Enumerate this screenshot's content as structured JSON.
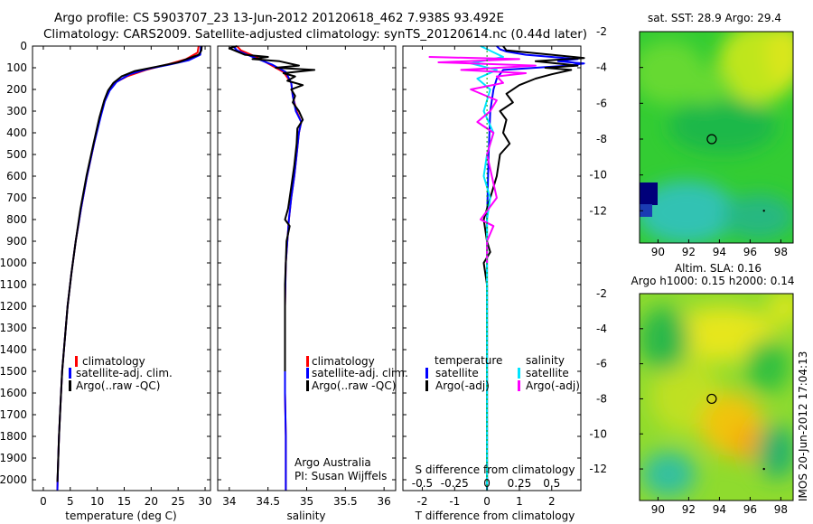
{
  "header": {
    "line1": "Argo profile: CS 5903707_23 13-Jun-2012 20120618_462 7.938S 93.492E",
    "line2": "Climatology: CARS2009. Satellite-adjusted climatology: synTS_20120614.nc (0.44d later)"
  },
  "depth_ticks": [
    0,
    100,
    200,
    300,
    400,
    500,
    600,
    700,
    800,
    900,
    1000,
    1100,
    1200,
    1300,
    1400,
    1500,
    1600,
    1700,
    1800,
    1900,
    2000
  ],
  "colors": {
    "climatology": "#ff0000",
    "satellite": "#0000ff",
    "argo": "#000000",
    "sat_diff_s": "#00e5ff",
    "argo_diff_s": "#ff00ff"
  },
  "chart_data": [
    {
      "type": "line",
      "xlabel": "temperature (deg C)",
      "xlim": [
        -2,
        31
      ],
      "xticks": [
        0,
        5,
        10,
        15,
        20,
        25,
        30
      ],
      "ylim": [
        2050,
        0
      ],
      "legend": [
        "climatology",
        "satellite-adj. clim.",
        "Argo(..raw -QC)"
      ],
      "series": [
        {
          "name": "climatology",
          "color": "#ff0000",
          "points": [
            [
              28.8,
              0
            ],
            [
              28.6,
              30
            ],
            [
              26.5,
              60
            ],
            [
              23,
              85
            ],
            [
              19,
              110
            ],
            [
              15.5,
              140
            ],
            [
              13.2,
              170
            ],
            [
              12,
              210
            ],
            [
              11.3,
              260
            ],
            [
              10.5,
              330
            ],
            [
              9.4,
              450
            ],
            [
              8.1,
              600
            ],
            [
              7,
              750
            ],
            [
              6,
              900
            ],
            [
              5.2,
              1050
            ],
            [
              4.5,
              1200
            ],
            [
              4,
              1350
            ],
            [
              3.5,
              1500
            ],
            [
              3.2,
              1650
            ],
            [
              2.9,
              1800
            ],
            [
              2.7,
              1950
            ],
            [
              2.6,
              2050
            ]
          ]
        },
        {
          "name": "satellite-adj. clim.",
          "color": "#0000ff",
          "points": [
            [
              29.2,
              0
            ],
            [
              29.1,
              40
            ],
            [
              27,
              65
            ],
            [
              23.5,
              85
            ],
            [
              19.5,
              105
            ],
            [
              16,
              130
            ],
            [
              13.6,
              165
            ],
            [
              12.3,
              205
            ],
            [
              11.4,
              255
            ],
            [
              10.6,
              330
            ],
            [
              9.4,
              450
            ],
            [
              8.1,
              600
            ],
            [
              7,
              750
            ],
            [
              6,
              900
            ],
            [
              5.2,
              1050
            ],
            [
              4.5,
              1200
            ],
            [
              4,
              1350
            ],
            [
              3.5,
              1500
            ],
            [
              3.2,
              1650
            ],
            [
              2.9,
              1800
            ],
            [
              2.7,
              1950
            ],
            [
              2.6,
              2050
            ]
          ]
        },
        {
          "name": "Argo(..raw -QC)",
          "color": "#000000",
          "points": [
            [
              29.4,
              0
            ],
            [
              29.3,
              20
            ],
            [
              28.8,
              40
            ],
            [
              25,
              75
            ],
            [
              21,
              95
            ],
            [
              17,
              115
            ],
            [
              14.5,
              140
            ],
            [
              13,
              170
            ],
            [
              12,
              205
            ],
            [
              11.3,
              250
            ],
            [
              10.4,
              330
            ],
            [
              9.3,
              450
            ],
            [
              8,
              600
            ],
            [
              6.9,
              750
            ],
            [
              6,
              900
            ],
            [
              5.2,
              1050
            ],
            [
              4.5,
              1200
            ],
            [
              4,
              1350
            ],
            [
              3.5,
              1500
            ],
            [
              3.2,
              1650
            ],
            [
              2.9,
              1800
            ],
            [
              2.7,
              1950
            ],
            [
              2.6,
              2010
            ]
          ]
        }
      ]
    },
    {
      "type": "line",
      "xlabel": "salinity",
      "xlim": [
        33.85,
        36.15
      ],
      "xticks": [
        34,
        34.5,
        35,
        35.5,
        36
      ],
      "ylim": [
        2050,
        0
      ],
      "legend": [
        "climatology",
        "satellite-adj. clim.",
        "Argo(..raw -QC)"
      ],
      "annotation": [
        "Argo Australia",
        "PI: Susan Wijffels"
      ],
      "series": [
        {
          "name": "climatology",
          "color": "#ff0000",
          "points": [
            [
              34.1,
              0
            ],
            [
              34.15,
              20
            ],
            [
              34.35,
              50
            ],
            [
              34.5,
              80
            ],
            [
              34.7,
              120
            ],
            [
              34.8,
              170
            ],
            [
              34.82,
              230
            ],
            [
              34.87,
              300
            ],
            [
              34.93,
              350
            ],
            [
              34.9,
              400
            ],
            [
              34.87,
              500
            ],
            [
              34.84,
              600
            ],
            [
              34.8,
              700
            ],
            [
              34.77,
              800
            ],
            [
              34.75,
              900
            ],
            [
              34.73,
              1000
            ],
            [
              34.72,
              1200
            ],
            [
              34.72,
              1400
            ],
            [
              34.72,
              1600
            ],
            [
              34.73,
              1800
            ],
            [
              34.73,
              2050
            ]
          ]
        },
        {
          "name": "satellite-adj. clim.",
          "color": "#0000ff",
          "points": [
            [
              34.05,
              0
            ],
            [
              34.1,
              20
            ],
            [
              34.3,
              50
            ],
            [
              34.55,
              85
            ],
            [
              34.73,
              120
            ],
            [
              34.8,
              170
            ],
            [
              34.82,
              230
            ],
            [
              34.86,
              300
            ],
            [
              34.93,
              350
            ],
            [
              34.9,
              400
            ],
            [
              34.87,
              500
            ],
            [
              34.84,
              600
            ],
            [
              34.8,
              700
            ],
            [
              34.77,
              800
            ],
            [
              34.75,
              900
            ],
            [
              34.73,
              1000
            ],
            [
              34.72,
              1200
            ],
            [
              34.72,
              1400
            ],
            [
              34.72,
              1600
            ],
            [
              34.73,
              1800
            ],
            [
              34.73,
              2050
            ]
          ]
        },
        {
          "name": "Argo(..raw -QC)",
          "color": "#000000",
          "points": [
            [
              34.1,
              0
            ],
            [
              34.0,
              10
            ],
            [
              34.2,
              40
            ],
            [
              34.5,
              50
            ],
            [
              34.3,
              60
            ],
            [
              34.65,
              70
            ],
            [
              34.9,
              90
            ],
            [
              34.6,
              100
            ],
            [
              35.1,
              110
            ],
            [
              34.7,
              125
            ],
            [
              34.85,
              140
            ],
            [
              34.75,
              160
            ],
            [
              34.95,
              180
            ],
            [
              34.8,
              200
            ],
            [
              34.85,
              230
            ],
            [
              34.82,
              260
            ],
            [
              34.9,
              300
            ],
            [
              34.95,
              340
            ],
            [
              34.88,
              380
            ],
            [
              34.87,
              450
            ],
            [
              34.84,
              550
            ],
            [
              34.8,
              650
            ],
            [
              34.76,
              750
            ],
            [
              34.72,
              800
            ],
            [
              34.78,
              830
            ],
            [
              34.74,
              900
            ],
            [
              34.73,
              1000
            ],
            [
              34.72,
              1100
            ],
            [
              34.72,
              1300
            ],
            [
              34.72,
              1500
            ]
          ]
        }
      ]
    },
    {
      "type": "line",
      "xlabel": "T difference from climatology",
      "xlabel2": "S difference from climatology",
      "xlim": [
        -2.6,
        2.9
      ],
      "xticks": [
        -2,
        -1,
        0,
        1,
        2
      ],
      "s_ticks": [
        [
          "-0.5",
          -2
        ],
        [
          "-0.25",
          -1
        ],
        [
          "0",
          0
        ],
        [
          "0.25",
          1
        ],
        [
          "0.5",
          2
        ]
      ],
      "ylim": [
        2050,
        0
      ],
      "legend_t": {
        "title": "temperature",
        "items": [
          "satellite",
          "Argo(-adj)"
        ]
      },
      "legend_s": {
        "title": "salinity",
        "items": [
          "satellite",
          "Argo(-adj)"
        ]
      },
      "series": [
        {
          "name": "satellite",
          "color": "#0000ff",
          "points": [
            [
              0.3,
              0
            ],
            [
              0.4,
              15
            ],
            [
              0.6,
              25
            ],
            [
              1.2,
              40
            ],
            [
              2.8,
              60
            ],
            [
              2.2,
              70
            ],
            [
              3.0,
              80
            ],
            [
              2.5,
              90
            ],
            [
              0.5,
              110
            ],
            [
              0.3,
              150
            ],
            [
              0.2,
              200
            ],
            [
              0.1,
              300
            ],
            [
              0.05,
              500
            ],
            [
              0,
              800
            ],
            [
              0,
              1200
            ],
            [
              0,
              2050
            ]
          ]
        },
        {
          "name": "Argo(-adj)",
          "color": "#000000",
          "points": [
            [
              0.5,
              0
            ],
            [
              0.6,
              20
            ],
            [
              2.0,
              40
            ],
            [
              3.0,
              55
            ],
            [
              1.5,
              70
            ],
            [
              2.8,
              90
            ],
            [
              1.8,
              100
            ],
            [
              2.6,
              110
            ],
            [
              2.0,
              130
            ],
            [
              1.5,
              150
            ],
            [
              1.0,
              180
            ],
            [
              0.6,
              220
            ],
            [
              0.8,
              260
            ],
            [
              0.4,
              300
            ],
            [
              0.6,
              340
            ],
            [
              0.5,
              400
            ],
            [
              0.7,
              450
            ],
            [
              0.4,
              500
            ],
            [
              0.3,
              600
            ],
            [
              0.1,
              700
            ],
            [
              -0.1,
              800
            ],
            [
              0,
              900
            ],
            [
              0.1,
              950
            ],
            [
              -0.1,
              1000
            ],
            [
              0,
              1100
            ],
            [
              0,
              1500
            ],
            [
              0,
              2000
            ]
          ]
        },
        {
          "name": "satellite salinity",
          "color": "#00e5ff",
          "points": [
            [
              -0.2,
              0
            ],
            [
              0.5,
              50
            ],
            [
              -0.5,
              80
            ],
            [
              0.3,
              110
            ],
            [
              -0.3,
              150
            ],
            [
              0.1,
              200
            ],
            [
              -0.1,
              300
            ],
            [
              0.2,
              400
            ],
            [
              0,
              500
            ],
            [
              -0.1,
              600
            ],
            [
              0.1,
              700
            ],
            [
              0,
              800
            ],
            [
              0,
              1000
            ],
            [
              0,
              2050
            ]
          ]
        },
        {
          "name": "Argo salinity",
          "color": "#ff00ff",
          "points": [
            [
              -1.8,
              50
            ],
            [
              1.0,
              60
            ],
            [
              -1.5,
              75
            ],
            [
              1.5,
              90
            ],
            [
              -0.8,
              110
            ],
            [
              1.2,
              125
            ],
            [
              0.3,
              140
            ],
            [
              0.5,
              170
            ],
            [
              -0.5,
              200
            ],
            [
              0.3,
              250
            ],
            [
              0.1,
              300
            ],
            [
              -0.3,
              350
            ],
            [
              0.2,
              400
            ],
            [
              0,
              500
            ],
            [
              0.3,
              700
            ],
            [
              -0.2,
              800
            ],
            [
              0.2,
              830
            ],
            [
              0,
              900
            ],
            [
              0,
              1000
            ]
          ]
        }
      ]
    },
    {
      "type": "heatmap",
      "title": "sat. SST: 28.9 Argo: 29.4",
      "xticks": [
        90,
        92,
        94,
        96,
        98
      ],
      "yticks": [
        -2,
        -4,
        -6,
        -8,
        -10,
        -12
      ],
      "xlim": [
        88.8,
        98.8
      ],
      "ylim": [
        -13.8,
        -2
      ],
      "marker": [
        93.5,
        -8
      ]
    },
    {
      "type": "heatmap",
      "title": "Altim. SLA: 0.16",
      "subtitle": "Argo h1000: 0.15 h2000: 0.14",
      "xticks": [
        90,
        92,
        94,
        96,
        98
      ],
      "yticks": [
        -2,
        -4,
        -6,
        -8,
        -10,
        -12
      ],
      "xlim": [
        88.8,
        98.8
      ],
      "ylim": [
        -13.8,
        -2
      ],
      "marker": [
        93.5,
        -8
      ]
    }
  ],
  "side_label": "IMOS 20-Jun-2012 17:04:13"
}
